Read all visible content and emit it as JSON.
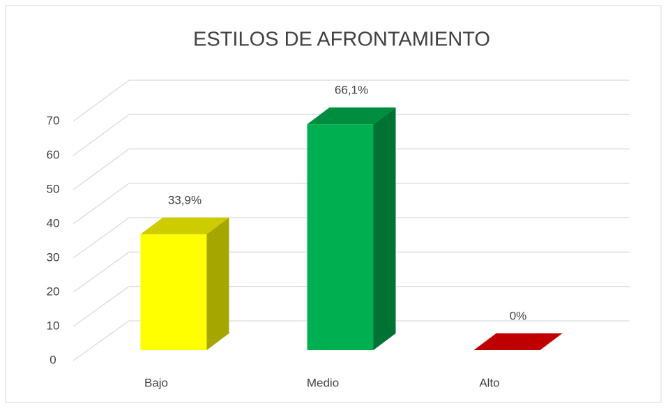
{
  "chart_data": {
    "type": "bar3d",
    "title": "ESTILOS DE AFRONTAMIENTO",
    "categories": [
      "Bajo",
      "Medio",
      "Alto"
    ],
    "values": [
      33.9,
      66.1,
      0
    ],
    "value_labels": [
      "33,9%",
      "66,1%",
      "0%"
    ],
    "colors": [
      "#ffff00",
      "#00b050",
      "#c00000"
    ],
    "ylim": [
      0,
      70
    ],
    "yticks": [
      0,
      10,
      20,
      30,
      40,
      50,
      60,
      70
    ],
    "grid": true
  }
}
